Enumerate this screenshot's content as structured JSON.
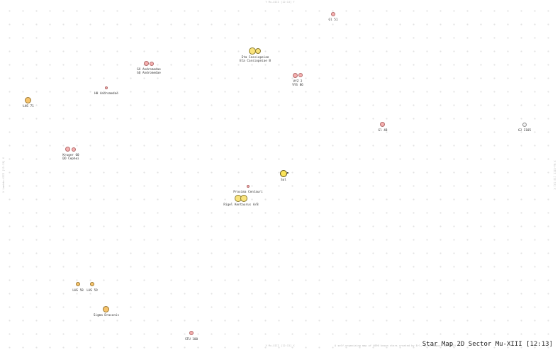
{
  "map": {
    "title": "Star Map 2D Sector Mu-XIII [12:13]",
    "edge_labels": {
      "top": "Y Mu-XIII [12:13] Y",
      "bottom": "X Mu-XIII [12:13] X",
      "left": "X Lambda-XIII [11:13] X",
      "right": "X Nu-XIII [13:13] X"
    },
    "caption": "A self-organizing map of 4096 known stars created by Erl, 11.0, August 20, 2024"
  },
  "stars": [
    {
      "id": "gl-51",
      "label": "Gl 51",
      "color": "red"
    },
    {
      "id": "eta-cassiopeiae",
      "label": "Eta Cassiopeiae\nEta Cassiopeiae B",
      "color": "yellow"
    },
    {
      "id": "gq-andromedae",
      "label": "GX Andromedae\nGQ Andromedae",
      "color": "red"
    },
    {
      "id": "vyz-2",
      "label": "VYZ 2\nVYS 86",
      "color": "red"
    },
    {
      "id": "hh-andromedae",
      "label": "HH Andromedae",
      "color": "red"
    },
    {
      "id": "lhs-71",
      "label": "LHS 71",
      "color": "orange"
    },
    {
      "id": "gl-48",
      "label": "Gl 48",
      "color": "red"
    },
    {
      "id": "gj-3105",
      "label": "GJ 3105",
      "color": "white"
    },
    {
      "id": "kruger-60",
      "label": "Kruger 60\nDO Cephei",
      "color": "red"
    },
    {
      "id": "sol",
      "label": "Sol",
      "color": "sun"
    },
    {
      "id": "proxima-centauri",
      "label": "Proxima Centauri",
      "color": "red"
    },
    {
      "id": "rigil-kentaurus",
      "label": "Rigel Kentaurus A/B",
      "color": "yellow"
    },
    {
      "id": "lhs-58",
      "label": "LHS 58",
      "color": "orange"
    },
    {
      "id": "lhs-59",
      "label": "LHS 59",
      "color": "orange"
    },
    {
      "id": "sigma-draconis",
      "label": "Sigma Draconis",
      "color": "orange"
    },
    {
      "id": "stu-100",
      "label": "STU 100",
      "color": "red"
    }
  ]
}
